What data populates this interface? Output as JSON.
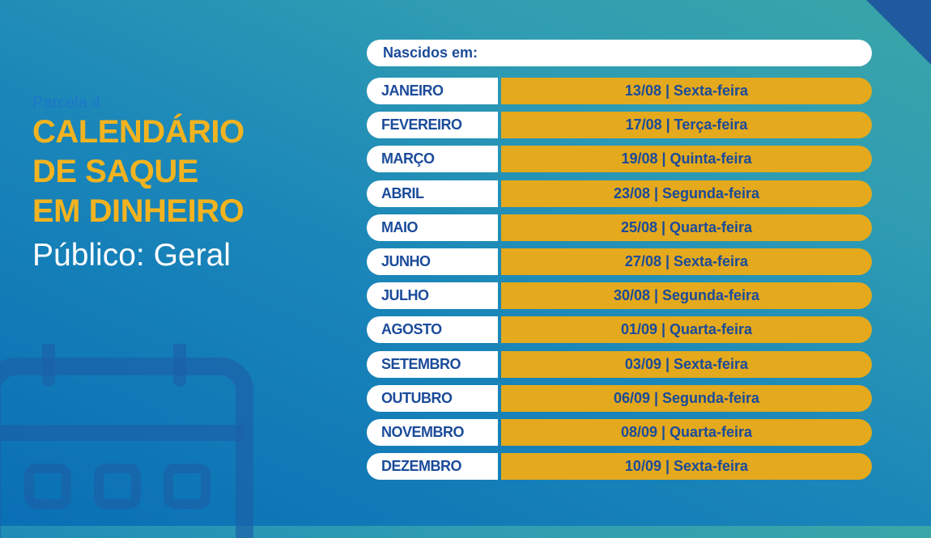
{
  "header": {
    "kicker": "Parcela 4",
    "title_lines": [
      "CALENDÁRIO",
      "DE SAQUE",
      "EM DINHEIRO"
    ],
    "subtitle": "Público: Geral"
  },
  "table": {
    "header": "Nascidos em:",
    "rows": [
      {
        "month": "JANEIRO",
        "date": "13/08 | Sexta-feira"
      },
      {
        "month": "FEVEREIRO",
        "date": "17/08 | Terça-feira"
      },
      {
        "month": "MARÇO",
        "date": "19/08 | Quinta-feira"
      },
      {
        "month": "ABRIL",
        "date": "23/08 | Segunda-feira"
      },
      {
        "month": "MAIO",
        "date": "25/08 | Quarta-feira"
      },
      {
        "month": "JUNHO",
        "date": "27/08 | Sexta-feira"
      },
      {
        "month": "JULHO",
        "date": "30/08 | Segunda-feira"
      },
      {
        "month": "AGOSTO",
        "date": "01/09 | Quarta-feira"
      },
      {
        "month": "SETEMBRO",
        "date": "03/09 | Sexta-feira"
      },
      {
        "month": "OUTUBRO",
        "date": "06/09 | Segunda-feira"
      },
      {
        "month": "NOVEMBRO",
        "date": "08/09 | Quarta-feira"
      },
      {
        "month": "DEZEMBRO",
        "date": "10/09 | Sexta-feira"
      }
    ]
  },
  "icons": {
    "calendar": "calendar-icon"
  },
  "colors": {
    "accent": "#f2b320",
    "date_fill": "#e4a91c",
    "text_blue": "#1b4b9a",
    "kicker_blue": "#1d77c8"
  }
}
